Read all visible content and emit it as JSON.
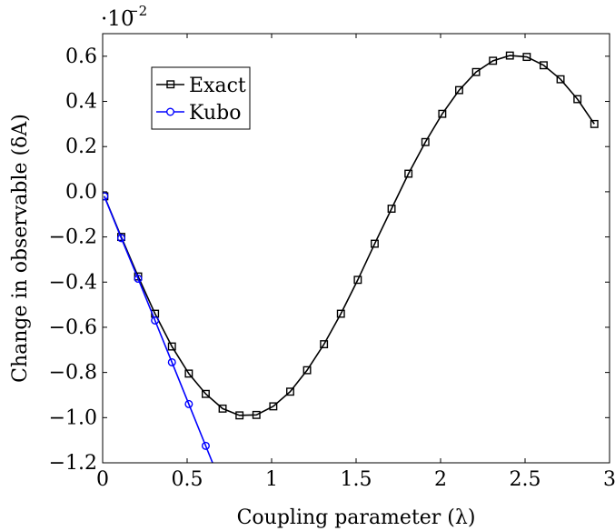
{
  "chart_data": {
    "type": "line",
    "title": "",
    "xlabel": "Coupling parameter (λ)",
    "ylabel": "Change in observable (δA)",
    "scale_factor_base": "·10",
    "scale_factor_exp": "−2",
    "xlim": [
      0,
      3
    ],
    "ylim": [
      -1.2,
      0.7
    ],
    "xticks": [
      0,
      0.5,
      1,
      1.5,
      2,
      2.5,
      3
    ],
    "xtick_labels": [
      "0",
      "0.5",
      "1",
      "1.5",
      "2",
      "2.5",
      "3"
    ],
    "yticks": [
      -1.2,
      -1.0,
      -0.8,
      -0.6,
      -0.4,
      -0.2,
      0.0,
      0.2,
      0.4,
      0.6
    ],
    "ytick_labels": [
      "−1.2",
      "−1.0",
      "−0.8",
      "−0.6",
      "−0.4",
      "−0.2",
      "0.0",
      "0.2",
      "0.4",
      "0.6"
    ],
    "grid": false,
    "legend_position": "top-left",
    "series": [
      {
        "name": "Exact",
        "color": "#000000",
        "marker": "square",
        "x": [
          0.01,
          0.11,
          0.21,
          0.31,
          0.41,
          0.51,
          0.61,
          0.71,
          0.81,
          0.91,
          1.01,
          1.11,
          1.21,
          1.31,
          1.41,
          1.51,
          1.61,
          1.71,
          1.81,
          1.91,
          2.01,
          2.11,
          2.21,
          2.31,
          2.41,
          2.51,
          2.61,
          2.71,
          2.81,
          2.91
        ],
        "y": [
          -0.02,
          -0.2,
          -0.375,
          -0.54,
          -0.685,
          -0.805,
          -0.895,
          -0.96,
          -0.99,
          -0.988,
          -0.95,
          -0.885,
          -0.79,
          -0.675,
          -0.54,
          -0.39,
          -0.23,
          -0.075,
          0.08,
          0.22,
          0.345,
          0.45,
          0.53,
          0.58,
          0.603,
          0.597,
          0.56,
          0.498,
          0.41,
          0.3
        ]
      },
      {
        "name": "Kubo",
        "color": "#0000ff",
        "marker": "circle",
        "x": [
          0.01,
          0.11,
          0.21,
          0.31,
          0.41,
          0.51,
          0.61
        ],
        "y": [
          -0.02,
          -0.205,
          -0.385,
          -0.57,
          -0.755,
          -0.94,
          -1.125
        ],
        "line_extends_to_x": 0.655
      }
    ]
  }
}
